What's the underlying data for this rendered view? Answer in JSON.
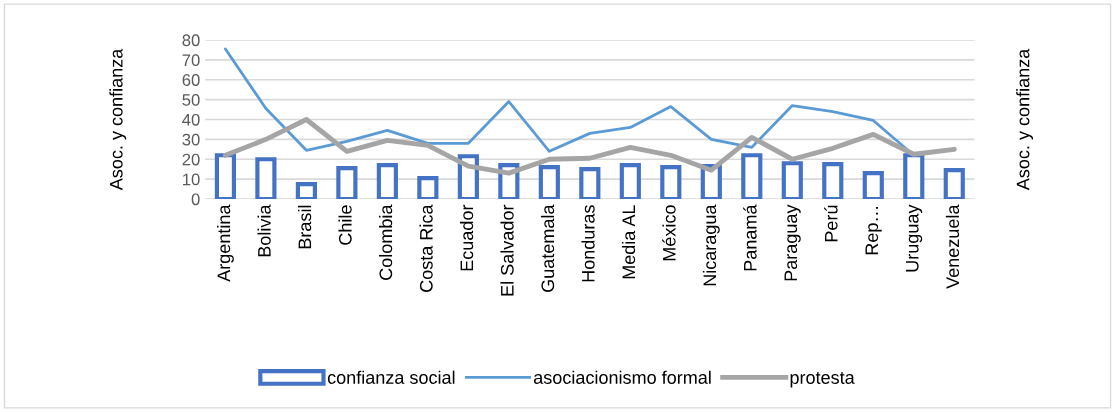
{
  "chart_data": {
    "type": "bar",
    "categories": [
      "Argentina",
      "Bolivia",
      "Brasil",
      "Chile",
      "Colombia",
      "Costa Rica",
      "Ecuador",
      "El Salvador",
      "Guatemala",
      "Honduras",
      "Media AL",
      "México",
      "Nicaragua",
      "Panamá",
      "Paraguay",
      "Perú",
      "Rep…",
      "Uruguay",
      "Venezuela"
    ],
    "series": [
      {
        "name": "confianza social",
        "color": "#4472c4",
        "values": [
          22,
          20,
          7.5,
          15.5,
          17,
          10.5,
          21.5,
          17,
          16,
          15,
          17,
          16,
          16.5,
          22,
          18,
          17.5,
          13,
          22,
          14.5
        ]
      },
      {
        "name": "asociacionismo formal",
        "type": "line",
        "color": "#5b9bd5",
        "values": [
          75.5,
          45.5,
          24.5,
          29,
          34.5,
          28,
          28,
          49,
          24,
          33,
          36,
          46.5,
          30,
          26,
          47,
          44,
          39.5,
          22,
          null
        ]
      },
      {
        "name": "protesta",
        "type": "line",
        "color": "#a5a5a5",
        "values": [
          22,
          30,
          40,
          24,
          29.5,
          27,
          16.5,
          13,
          20,
          20.5,
          26,
          22,
          14.5,
          31,
          20,
          25.5,
          32.5,
          22.5,
          25
        ]
      }
    ],
    "ylabel": "Asoc. y confianza",
    "y2label": "Asoc. y confianza",
    "ylim": [
      0,
      80
    ],
    "yticks": [
      0,
      10,
      20,
      30,
      40,
      50,
      60,
      70,
      80
    ],
    "grid": "y",
    "legend": "bottom"
  }
}
